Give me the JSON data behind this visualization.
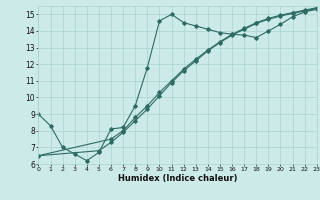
{
  "xlabel": "Humidex (Indice chaleur)",
  "bg_color": "#cceae7",
  "grid_color": "#aad4d0",
  "line_color": "#2e6b65",
  "line1_x": [
    0,
    1,
    2,
    3,
    4,
    5,
    6,
    7,
    8,
    9,
    10,
    11,
    12,
    13,
    14,
    15,
    16,
    17,
    18,
    19,
    20,
    21,
    22,
    23
  ],
  "line1_y": [
    9.0,
    8.3,
    7.0,
    6.6,
    6.2,
    6.7,
    8.1,
    8.2,
    9.5,
    11.8,
    14.6,
    15.0,
    14.5,
    14.3,
    14.1,
    13.9,
    13.8,
    13.75,
    13.6,
    14.0,
    14.4,
    14.85,
    15.15,
    15.3
  ],
  "line2_x": [
    0,
    6,
    7,
    8,
    9,
    10,
    11,
    12,
    13,
    14,
    15,
    16,
    17,
    18,
    19,
    20,
    21,
    22,
    23
  ],
  "line2_y": [
    6.5,
    7.5,
    8.0,
    8.8,
    9.5,
    10.3,
    11.0,
    11.7,
    12.3,
    12.85,
    13.35,
    13.8,
    14.15,
    14.5,
    14.75,
    14.95,
    15.1,
    15.25,
    15.4
  ],
  "line3_x": [
    0,
    5,
    6,
    7,
    8,
    9,
    10,
    11,
    12,
    13,
    14,
    15,
    16,
    17,
    18,
    19,
    20,
    21,
    22,
    23
  ],
  "line3_y": [
    6.5,
    6.8,
    7.3,
    7.9,
    8.6,
    9.3,
    10.1,
    10.9,
    11.6,
    12.2,
    12.8,
    13.3,
    13.75,
    14.1,
    14.45,
    14.7,
    14.9,
    15.05,
    15.2,
    15.35
  ],
  "xlim": [
    0,
    23
  ],
  "ylim": [
    6,
    15.5
  ],
  "yticks": [
    6,
    7,
    8,
    9,
    10,
    11,
    12,
    13,
    14,
    15
  ],
  "xticks": [
    0,
    1,
    2,
    3,
    4,
    5,
    6,
    7,
    8,
    9,
    10,
    11,
    12,
    13,
    14,
    15,
    16,
    17,
    18,
    19,
    20,
    21,
    22,
    23
  ]
}
